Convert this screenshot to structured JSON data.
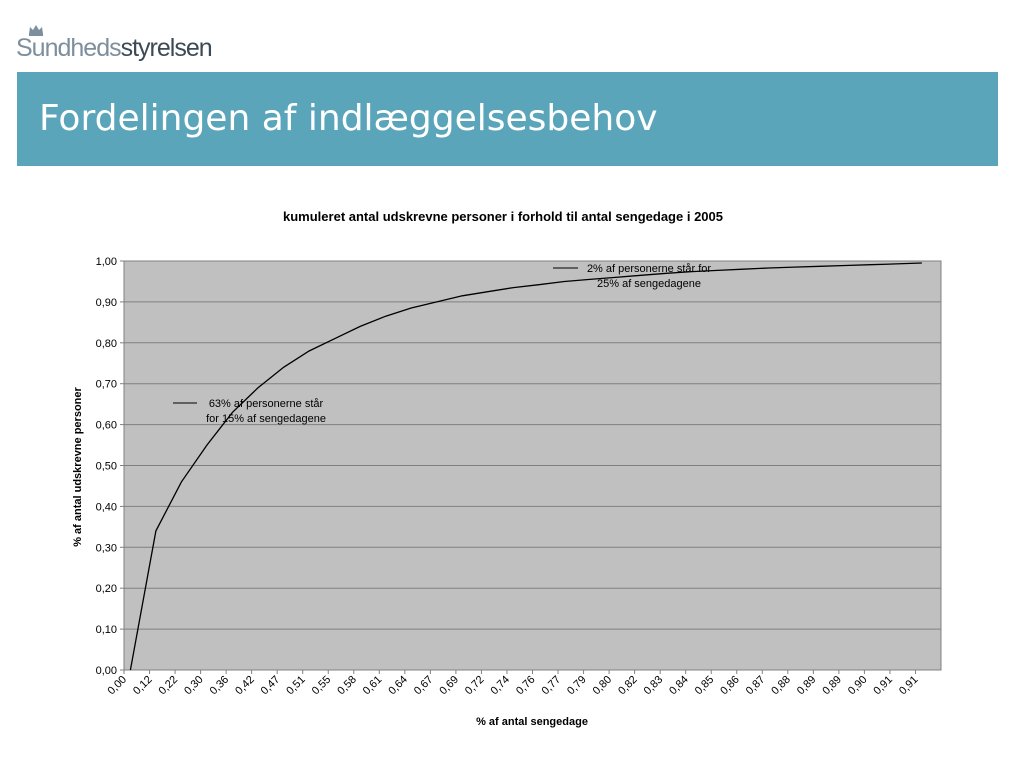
{
  "header": {
    "logo_part1": "Sundheds",
    "logo_part2": "styrelsen",
    "logo_icon": "crown-icon",
    "title": "Fordelingen af indlæggelsesbehov",
    "banner_color": "#5ba5bb"
  },
  "chart_data": {
    "type": "line",
    "title": "kumuleret antal udskrevne personer i forhold til antal sengedage i 2005",
    "xlabel": "% af antal sengedage",
    "ylabel": "% af antal udskrevne personer",
    "ylim": [
      0,
      1
    ],
    "yticks": [
      "0,00",
      "0,10",
      "0,20",
      "0,30",
      "0,40",
      "0,50",
      "0,60",
      "0,70",
      "0,80",
      "0,90",
      "1,00"
    ],
    "x_tick_labels": [
      "0,00",
      "0,12",
      "0,22",
      "0,30",
      "0,36",
      "0,42",
      "0,47",
      "0,51",
      "0,55",
      "0,58",
      "0,61",
      "0,64",
      "0,67",
      "0,69",
      "0,72",
      "0,74",
      "0,76",
      "0,77",
      "0,79",
      "0,80",
      "0,82",
      "0,83",
      "0,84",
      "0,85",
      "0,86",
      "0,87",
      "0,88",
      "0,89",
      "0,89",
      "0,90",
      "0,91",
      "0,91"
    ],
    "grid": true,
    "plot_background": "#c0c0c0",
    "series": [
      {
        "x": [
          0,
          1,
          2,
          3,
          4,
          5,
          6,
          7,
          8,
          9,
          10,
          11,
          12,
          13,
          14,
          15,
          16,
          17,
          18,
          19,
          20,
          21,
          22,
          23,
          24,
          25,
          26,
          27,
          28,
          29,
          30,
          31
        ],
        "values": [
          0.0,
          0.34,
          0.46,
          0.55,
          0.63,
          0.69,
          0.74,
          0.78,
          0.81,
          0.84,
          0.865,
          0.885,
          0.9,
          0.915,
          0.925,
          0.935,
          0.942,
          0.95,
          0.955,
          0.96,
          0.965,
          0.97,
          0.974,
          0.977,
          0.98,
          0.983,
          0.985,
          0.987,
          0.989,
          0.991,
          0.993,
          0.995
        ]
      }
    ],
    "annotations": [
      {
        "line1": "63% af personerne står",
        "line2": "for 15% af sengedagene"
      },
      {
        "line1": "2% af personerne står for",
        "line2": "25% af sengedagene"
      }
    ]
  }
}
